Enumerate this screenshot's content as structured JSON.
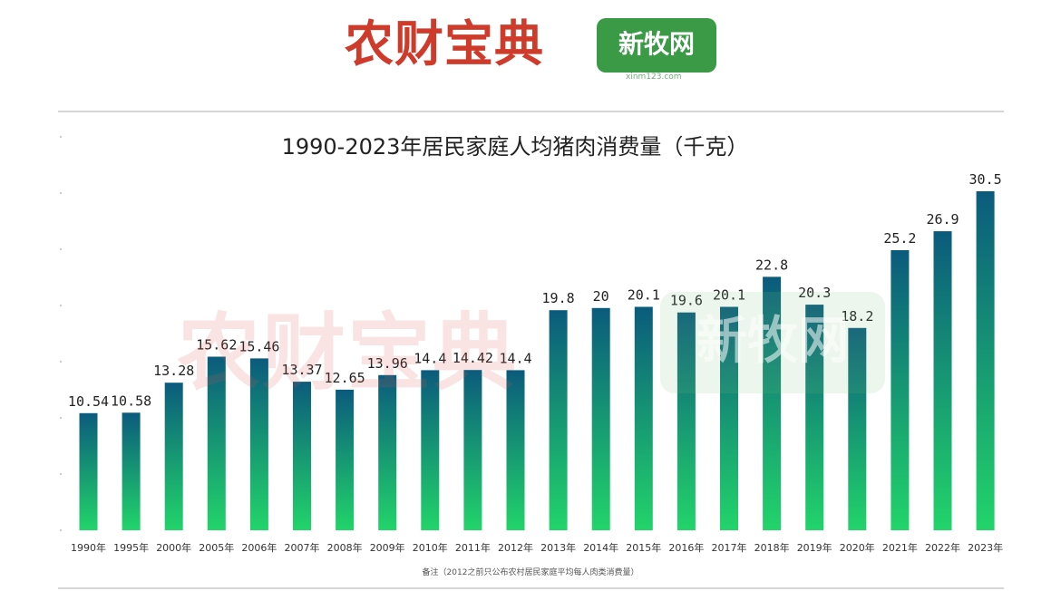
{
  "brand": {
    "left_logo": "农财宝典",
    "right_logo": "新牧网",
    "right_logo_sub": "xinm123.com"
  },
  "footnote": "备注（2012之前只公布农村居民家庭平均每人肉类消费量）",
  "colors": {
    "bar_top": "#0b5b7c",
    "bar_bottom": "#22d46a",
    "label": "#222222"
  },
  "chart_data": {
    "type": "bar",
    "title": "1990-2023年居民家庭人均猪肉消费量（千克）",
    "categories": [
      "1990年",
      "1995年",
      "2000年",
      "2005年",
      "2006年",
      "2007年",
      "2008年",
      "2009年",
      "2010年",
      "2011年",
      "2012年",
      "2013年",
      "2014年",
      "2015年",
      "2016年",
      "2017年",
      "2018年",
      "2019年",
      "2020年",
      "2021年",
      "2022年",
      "2023年"
    ],
    "values": [
      10.54,
      10.58,
      13.28,
      15.62,
      15.46,
      13.37,
      12.65,
      13.96,
      14.4,
      14.42,
      14.4,
      19.8,
      20,
      20.1,
      19.6,
      20.1,
      22.8,
      20.3,
      18.2,
      25.2,
      26.9,
      30.5
    ],
    "value_labels": [
      "10.54",
      "10.58",
      "13.28",
      "15.62",
      "15.46",
      "13.37",
      "12.65",
      "13.96",
      "14.4",
      "14.42",
      "14.4",
      "19.8",
      "20",
      "20.1",
      "19.6",
      "20.1",
      "22.8",
      "20.3",
      "18.2",
      "25.2",
      "26.9",
      "30.5"
    ],
    "xlabel": "",
    "ylabel": "",
    "ylim": [
      0,
      30.5
    ],
    "grid": false,
    "legend": "none"
  }
}
